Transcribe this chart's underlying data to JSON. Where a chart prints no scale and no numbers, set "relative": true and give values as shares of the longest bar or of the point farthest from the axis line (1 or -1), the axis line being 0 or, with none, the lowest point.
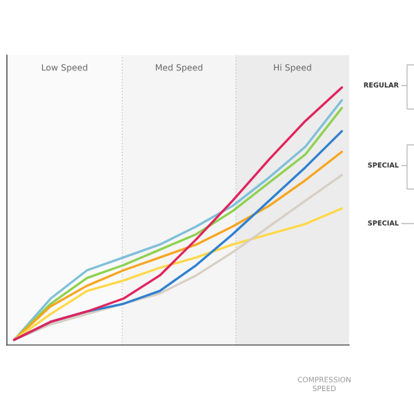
{
  "chart_data": {
    "type": "line",
    "relative": true,
    "categories": [
      null,
      null,
      null,
      null,
      null,
      null,
      null,
      null,
      null,
      null
    ],
    "series": [
      {
        "color": "#7fbfd8",
        "values": [
          0.02,
          0.18,
          0.29,
          0.34,
          0.39,
          0.46,
          0.54,
          0.65,
          0.77,
          0.95
        ]
      },
      {
        "color": "#8fd14f",
        "values": [
          0.02,
          0.16,
          0.26,
          0.31,
          0.37,
          0.43,
          0.52,
          0.63,
          0.74,
          0.92
        ]
      },
      {
        "color": "#f5a623",
        "values": [
          0.02,
          0.15,
          0.23,
          0.29,
          0.34,
          0.39,
          0.46,
          0.54,
          0.64,
          0.75
        ]
      },
      {
        "color": "#ffd84a",
        "values": [
          0.02,
          0.12,
          0.21,
          0.25,
          0.3,
          0.34,
          0.39,
          0.43,
          0.47,
          0.53
        ]
      },
      {
        "color": "#d8cfc4",
        "values": [
          0.02,
          0.08,
          0.12,
          0.16,
          0.2,
          0.27,
          0.36,
          0.46,
          0.56,
          0.66
        ]
      },
      {
        "color": "#2f80d0",
        "values": [
          0.02,
          0.09,
          0.13,
          0.16,
          0.21,
          0.31,
          0.43,
          0.56,
          0.69,
          0.83
        ]
      },
      {
        "color": "#e0245e",
        "values": [
          0.02,
          0.09,
          0.13,
          0.18,
          0.27,
          0.41,
          0.56,
          0.72,
          0.87,
          1
        ]
      }
    ],
    "annotations": [
      "Low Speed",
      "Med Speed",
      "Hi Speed",
      "REGULAR",
      "SPECIAL",
      "SPECIAL",
      "COMPRESSION\nSPEED"
    ],
    "marker": "none",
    "line_style": "solid"
  }
}
